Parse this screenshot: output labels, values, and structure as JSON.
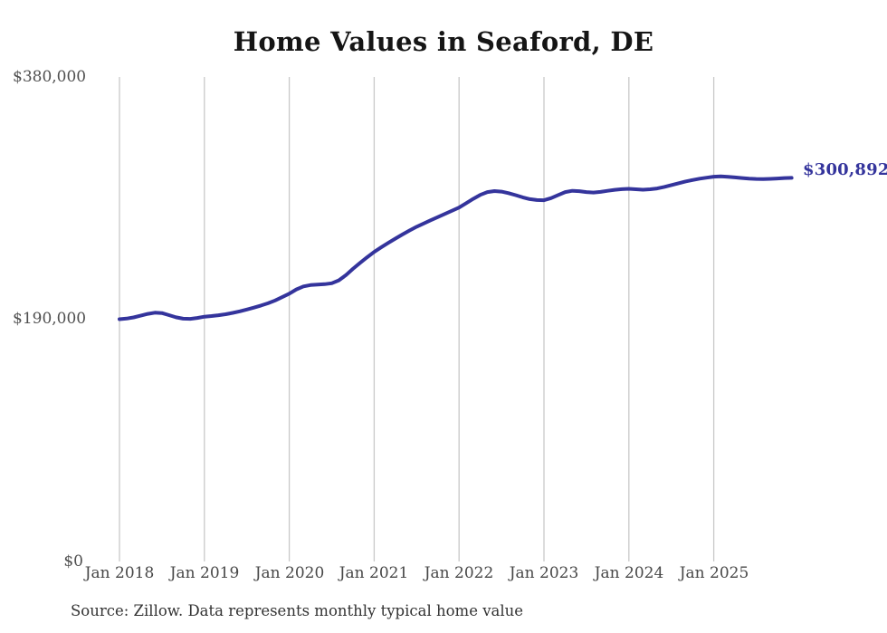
{
  "title": "Home Values in Seaford, DE",
  "source_note": "Source: Zillow. Data represents monthly typical home value",
  "end_label": "$300,892",
  "colors": {
    "line": "#34349c",
    "grid": "#c9c9c9",
    "axis_text": "#4f4f4f",
    "title_text": "#151515",
    "end_label_text": "#34349c"
  },
  "chart_data": {
    "type": "line",
    "title": "Home Values in Seaford, DE",
    "xlabel": "",
    "ylabel": "",
    "ylim": [
      0,
      380000
    ],
    "yticks": [
      380000,
      190000,
      0
    ],
    "y_tick_labels": [
      "$380,000",
      "$190,000",
      "$0"
    ],
    "x_tick_labels": [
      "Jan 2018",
      "Jan 2019",
      "Jan 2020",
      "Jan 2021",
      "Jan 2022",
      "Jan 2023",
      "Jan 2024",
      "Jan 2025"
    ],
    "x_monthly_start": "2018-01",
    "x_monthly_end": "2025-12",
    "grid": "vertical-only",
    "legend": "none",
    "end_value": 300892,
    "series": [
      {
        "name": "Typical home value",
        "values": [
          190000,
          190500,
          191400,
          192800,
          194200,
          195100,
          194800,
          193200,
          191500,
          190400,
          190300,
          191000,
          192000,
          192500,
          193100,
          193900,
          195000,
          196200,
          197600,
          199100,
          200700,
          202500,
          204700,
          207300,
          210000,
          213400,
          215700,
          216800,
          217200,
          217500,
          218200,
          220500,
          224500,
          229500,
          234200,
          238600,
          242800,
          246400,
          249900,
          253200,
          256500,
          259600,
          262500,
          265100,
          267600,
          270100,
          272600,
          275100,
          277600,
          281000,
          284400,
          287500,
          289700,
          290500,
          290100,
          288900,
          287300,
          285600,
          284200,
          283500,
          283300,
          285000,
          287400,
          289700,
          290700,
          290400,
          289700,
          289400,
          289900,
          290700,
          291500,
          292000,
          292300,
          291900,
          291600,
          291900,
          292600,
          293800,
          295200,
          296600,
          298000,
          299200,
          300200,
          301000,
          301800,
          302000,
          301700,
          301200,
          300700,
          300300,
          300000,
          299900,
          300100,
          300400,
          300700,
          300892
        ]
      }
    ]
  }
}
